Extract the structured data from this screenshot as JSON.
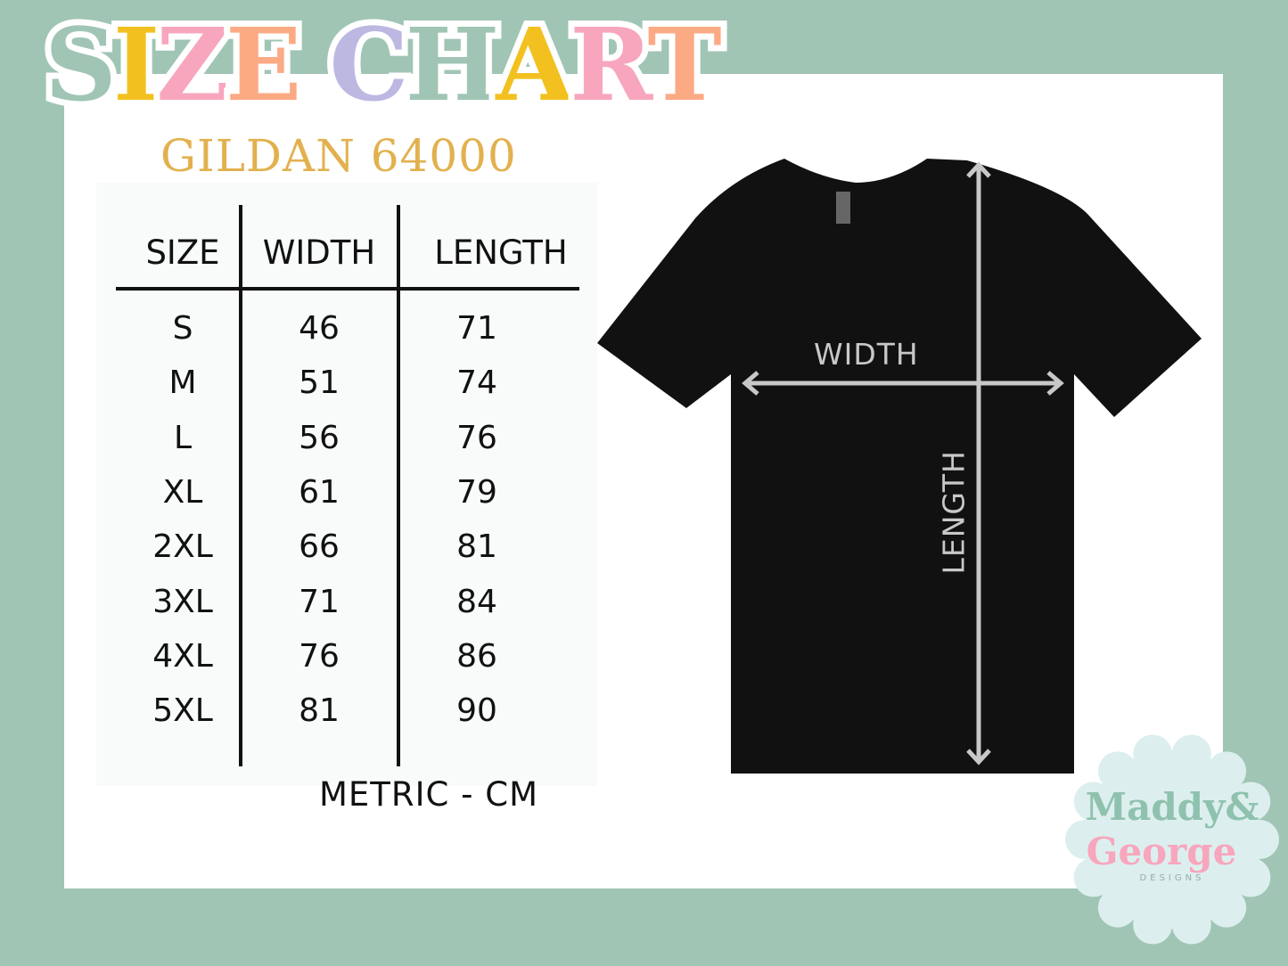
{
  "title": {
    "letters": [
      "S",
      "I",
      "Z",
      "E",
      " ",
      "C",
      "H",
      "A",
      "R",
      "T"
    ],
    "colors": [
      "#a0c5b4",
      "#f2c11f",
      "#f7a6bd",
      "#fbaa84",
      "#ffffff",
      "#bcb8e2",
      "#a0c5b4",
      "#f2c11f",
      "#f7a6bd",
      "#fbaa84"
    ]
  },
  "subtitle": "GILDAN 64000",
  "table": {
    "headers": [
      "SIZE",
      "WIDTH",
      "LENGTH"
    ],
    "rows": [
      [
        "S",
        "46",
        "71"
      ],
      [
        "M",
        "51",
        "74"
      ],
      [
        "L",
        "56",
        "76"
      ],
      [
        "XL",
        "61",
        "79"
      ],
      [
        "2XL",
        "66",
        "81"
      ],
      [
        "3XL",
        "71",
        "84"
      ],
      [
        "4XL",
        "76",
        "86"
      ],
      [
        "5XL",
        "81",
        "90"
      ]
    ],
    "unit_note": "METRIC - CM"
  },
  "diagram": {
    "width_label": "WIDTH",
    "length_label": "LENGTH"
  },
  "logo": {
    "line1": "Maddy&",
    "line2": "George",
    "line3": "DESIGNS"
  },
  "colors": {
    "background": "#a0c5b4",
    "subtitle": "#e2b14e",
    "arrow": "#c8c8c8",
    "shirt": "#111111"
  }
}
